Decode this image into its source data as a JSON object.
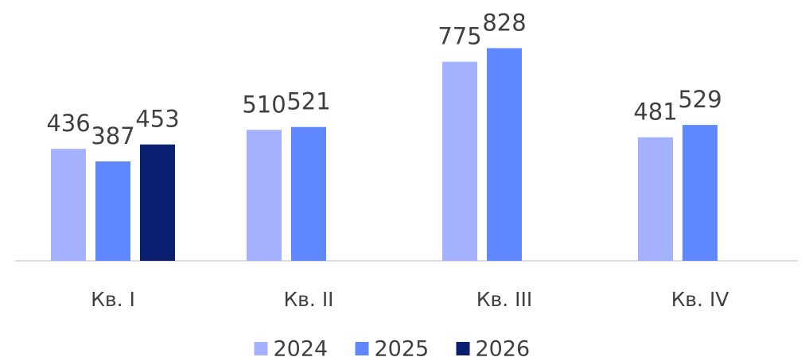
{
  "chart_data": {
    "type": "bar",
    "categories": [
      "Кв. I",
      "Кв. II",
      "Кв. III",
      "Кв. IV"
    ],
    "series": [
      {
        "name": "2024",
        "color": "#a3b1ff",
        "values": [
          436,
          510,
          775,
          481
        ]
      },
      {
        "name": "2025",
        "color": "#5f88ff",
        "values": [
          387,
          521,
          828,
          529
        ]
      },
      {
        "name": "2026",
        "color": "#0a1f70",
        "values": [
          453,
          null,
          null,
          null
        ]
      }
    ],
    "ylim": [
      0,
      1000
    ],
    "legend": "bottom"
  }
}
